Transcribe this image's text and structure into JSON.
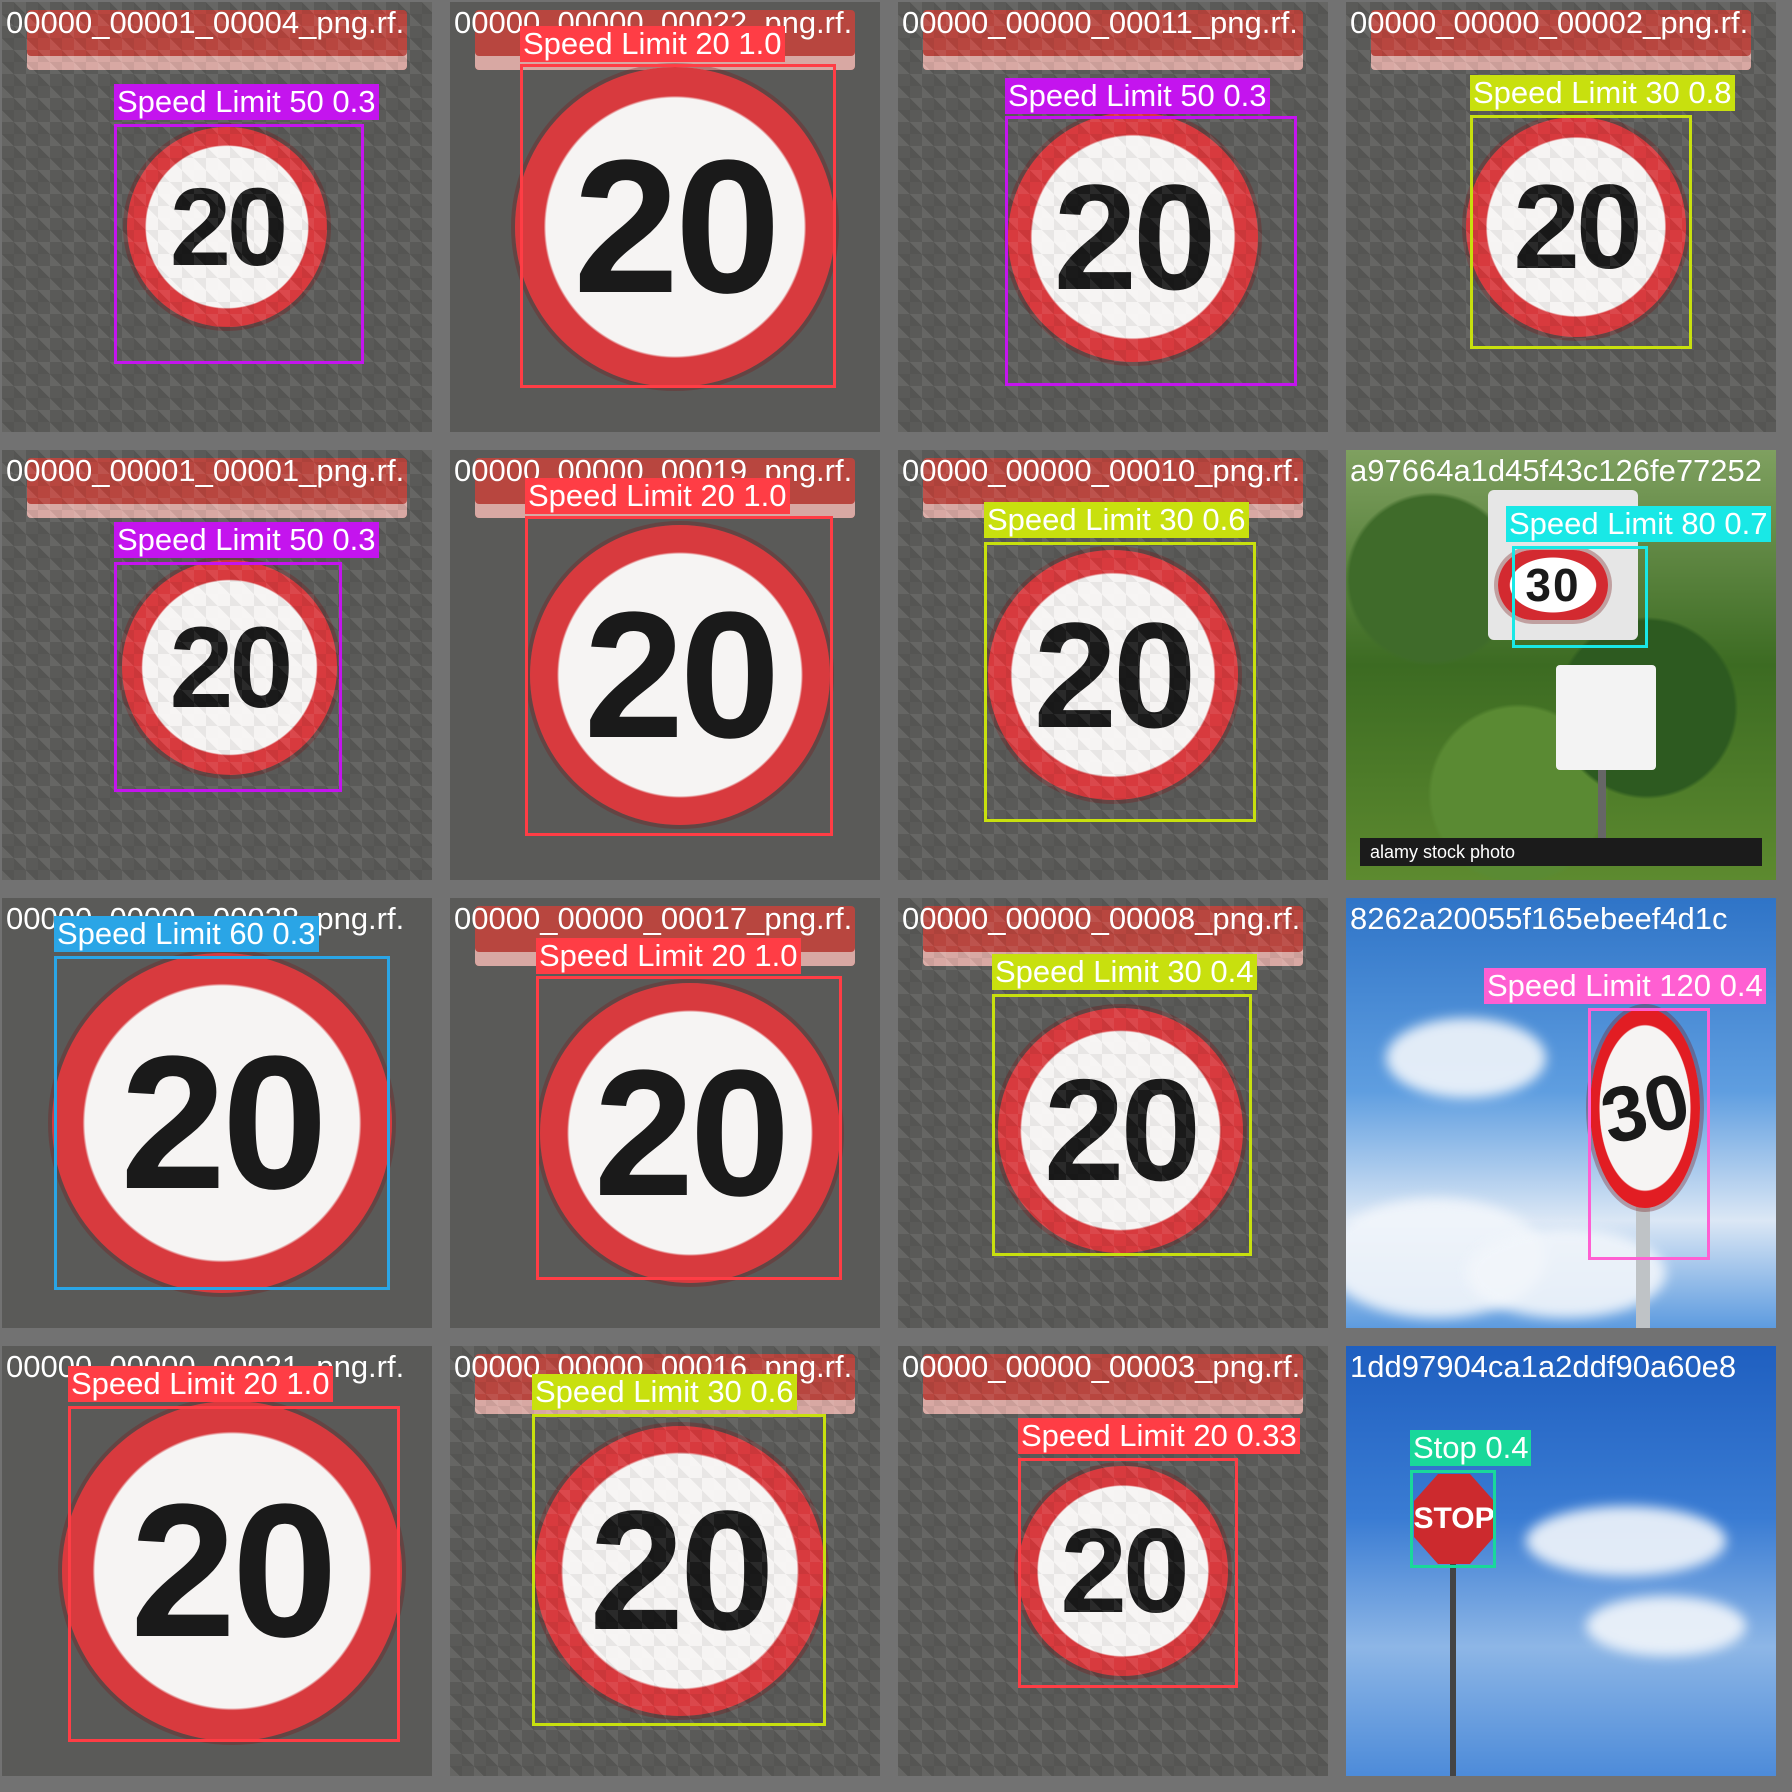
{
  "colors": {
    "speed_limit_20": "#ff3d45",
    "speed_limit_30": "#c8e00e",
    "speed_limit_50": "#c414ee",
    "speed_limit_60": "#2aa5e6",
    "speed_limit_80": "#19e8e6",
    "speed_limit_120": "#ff5fd2",
    "stop": "#19d89a"
  },
  "tiles": [
    {
      "filename": "00000_00001_00004_png.rf.",
      "sign_text": "20",
      "label": "Speed Limit 50 0.3",
      "class_color": "speed_limit_50"
    },
    {
      "filename": "00000_00000_00022_png.rf.",
      "sign_text": "20",
      "label": "Speed Limit 20 1.0",
      "class_color": "speed_limit_20"
    },
    {
      "filename": "00000_00000_00011_png.rf.",
      "sign_text": "20",
      "label": "Speed Limit 50 0.3",
      "class_color": "speed_limit_50"
    },
    {
      "filename": "00000_00000_00002_png.rf.",
      "sign_text": "20",
      "label": "Speed Limit 30 0.8",
      "class_color": "speed_limit_30"
    },
    {
      "filename": "00000_00001_00001_png.rf.",
      "sign_text": "20",
      "label": "Speed Limit 50 0.3",
      "class_color": "speed_limit_50"
    },
    {
      "filename": "00000_00000_00019_png.rf.",
      "sign_text": "20",
      "label": "Speed Limit 20 1.0",
      "class_color": "speed_limit_20"
    },
    {
      "filename": "00000_00000_00010_png.rf.",
      "sign_text": "20",
      "label": "Speed Limit 30 0.6",
      "class_color": "speed_limit_30"
    },
    {
      "filename": "a97664a1d45f43c126fe77252",
      "sign_text": "30",
      "label": "Speed Limit 80 0.7",
      "class_color": "speed_limit_80",
      "extra_text": "alamy stock photo"
    },
    {
      "filename": "00000_00000_00028_png.rf.",
      "sign_text": "20",
      "label": "Speed Limit 60 0.3",
      "class_color": "speed_limit_60"
    },
    {
      "filename": "00000_00000_00017_png.rf.",
      "sign_text": "20",
      "label": "Speed Limit 20 1.0",
      "class_color": "speed_limit_20"
    },
    {
      "filename": "00000_00000_00008_png.rf.",
      "sign_text": "20",
      "label": "Speed Limit 30 0.4",
      "class_color": "speed_limit_30"
    },
    {
      "filename": "8262a20055f165ebeef4d1c",
      "sign_text": "30",
      "label": "Speed Limit 120 0.4",
      "class_color": "speed_limit_120"
    },
    {
      "filename": "00000_00000_00021_png.rf.",
      "sign_text": "20",
      "label": "Speed Limit 20 1.0",
      "class_color": "speed_limit_20"
    },
    {
      "filename": "00000_00000_00016_png.rf.",
      "sign_text": "20",
      "label": "Speed Limit 30 0.6",
      "class_color": "speed_limit_30"
    },
    {
      "filename": "00000_00000_00003_png.rf.",
      "sign_text": "20",
      "label": "Speed Limit 20 0.33",
      "class_color": "speed_limit_20"
    },
    {
      "filename": "1dd97904ca1a2ddf90a60e8",
      "sign_text": "STOP",
      "label": "Stop 0.4",
      "class_color": "stop"
    }
  ]
}
